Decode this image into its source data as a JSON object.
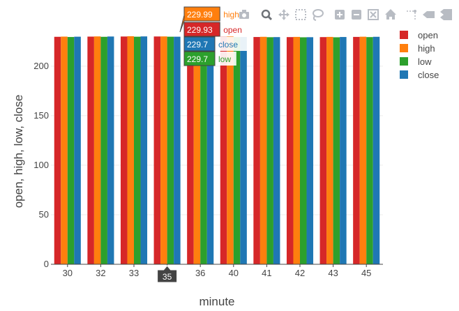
{
  "chart_data": {
    "type": "bar",
    "title": "",
    "xlabel": "minute",
    "ylabel": "open, high, low, close",
    "ylim": [
      0,
      240
    ],
    "yticks": [
      0,
      50,
      100,
      150,
      200
    ],
    "categories": [
      "30",
      "32",
      "33",
      "35",
      "36",
      "40",
      "41",
      "42",
      "43",
      "45"
    ],
    "series": [
      {
        "name": "open",
        "color": "#d62728",
        "values": [
          229.6,
          229.8,
          229.9,
          229.93,
          229.8,
          229.6,
          229.4,
          229.3,
          229.3,
          229.5
        ]
      },
      {
        "name": "high",
        "color": "#ff7f0e",
        "values": [
          229.8,
          230.0,
          230.2,
          229.99,
          230.0,
          229.9,
          229.6,
          229.5,
          229.5,
          229.7
        ]
      },
      {
        "name": "low",
        "color": "#2ca02c",
        "values": [
          229.4,
          229.6,
          229.7,
          229.7,
          229.5,
          229.3,
          229.2,
          229.1,
          229.1,
          229.3
        ]
      },
      {
        "name": "close",
        "color": "#1f77b4",
        "values": [
          229.7,
          229.9,
          230.0,
          229.7,
          229.6,
          229.4,
          229.3,
          229.2,
          229.4,
          229.6
        ]
      }
    ],
    "grid": true,
    "legend_position": "top-right",
    "hover": {
      "category_label": "35",
      "rows": [
        {
          "value": "229.99",
          "name": "high",
          "color": "#ff7f0e"
        },
        {
          "value": "229.93",
          "name": "open",
          "color": "#d62728"
        },
        {
          "value": "229.7",
          "name": "close",
          "color": "#1f77b4"
        },
        {
          "value": "229.7",
          "name": "low",
          "color": "#2ca02c"
        }
      ]
    }
  },
  "modebar": {
    "icons": [
      "camera-icon",
      "zoom-icon",
      "pan-icon",
      "box-select-icon",
      "lasso-select-icon",
      "zoom-in-icon",
      "zoom-out-icon",
      "autoscale-icon",
      "reset-axes-icon",
      "spike-lines-icon",
      "hover-closest-icon",
      "hover-compare-icon"
    ]
  }
}
